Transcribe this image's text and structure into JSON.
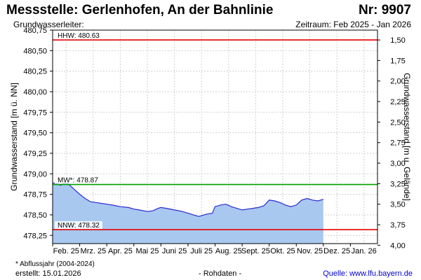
{
  "header": {
    "title": "Messstelle: Gerlenhofen,  An der Bahnlinie",
    "nr": "Nr: 9907",
    "leiter": "Grundwasserleiter:",
    "zeitraum": "Zeitraum: Feb 2025 - Jan 2026"
  },
  "footer": {
    "footnote": "* Abflussjahr (2004-2024)",
    "erstellt": "erstellt:  15.01.2026",
    "rohdaten": "- Rohdaten -",
    "quelle": "Quelle: www.lfu.bayern.de"
  },
  "colors": {
    "fill": "#a8c8f0",
    "line": "#2a2ad0",
    "hhw": "#e60000",
    "mw": "#00a000",
    "nnw": "#e60000",
    "grid": "#cfcfcf"
  },
  "chart_data": {
    "type": "area",
    "ylabel_left": "Grundwasserstand [m ü. NN]",
    "ylabel_right": "Grundwasserstand [m u. Gelände]",
    "ylim": [
      478.15,
      480.75
    ],
    "y_ticks": [
      480.75,
      480.5,
      480.25,
      480.0,
      479.75,
      479.5,
      479.25,
      479.0,
      478.75,
      478.5,
      478.25
    ],
    "y_tick_labels": [
      "480,75",
      "480,50",
      "480,25",
      "480,00",
      "479,75",
      "479,50",
      "479,25",
      "479,00",
      "478,75",
      "478,50",
      "478,25"
    ],
    "right_ticks": [
      1.5,
      1.75,
      2.0,
      2.25,
      2.5,
      2.75,
      3.0,
      3.25,
      3.5,
      3.75,
      4.0
    ],
    "right_tick_labels": [
      "1,50",
      "1,75",
      "2,00",
      "2,25",
      "2,50",
      "2,75",
      "3,00",
      "3,25",
      "3,50",
      "3,75",
      "4,00"
    ],
    "ground_level": 482.13,
    "x_labels": [
      "Feb. 25",
      "Mrz. 25",
      "Apr. 25",
      "Mai 25",
      "Juni 25",
      "Juli 25",
      "Aug. 25",
      "Sept. 25",
      "Okt. 25",
      "Nov. 25",
      "Dez. 25",
      "Jan. 26"
    ],
    "x_range_months": 12,
    "reference_lines": [
      {
        "label": "HHW: 480.63",
        "value": 480.63,
        "color": "#e60000"
      },
      {
        "label": "MW*: 478.87",
        "value": 478.87,
        "color": "#00a000"
      },
      {
        "label": "NNW: 478.32",
        "value": 478.32,
        "color": "#e60000"
      }
    ],
    "series": [
      {
        "x": [
          0,
          0.15,
          0.3,
          0.45,
          0.6,
          0.8,
          1.0,
          1.2,
          1.4,
          1.6,
          1.8,
          2.0,
          2.2,
          2.5,
          2.8,
          3.0,
          3.2,
          3.5,
          3.7,
          3.9,
          4.0,
          4.2,
          4.5,
          4.8,
          5.0,
          5.2,
          5.4,
          5.5,
          5.7,
          5.9,
          6.0,
          6.2,
          6.4,
          6.6,
          6.8,
          7.0,
          7.2,
          7.4,
          7.6,
          7.8,
          8.0,
          8.2,
          8.4,
          8.6,
          8.8,
          9.0,
          9.2,
          9.4,
          9.6,
          9.8,
          10.0
        ],
        "values": [
          478.89,
          478.88,
          478.86,
          478.89,
          478.87,
          478.81,
          478.75,
          478.7,
          478.66,
          478.65,
          478.64,
          478.63,
          478.62,
          478.6,
          478.59,
          478.57,
          478.56,
          478.54,
          478.55,
          478.58,
          478.59,
          478.58,
          478.56,
          478.54,
          478.52,
          478.5,
          478.48,
          478.49,
          478.51,
          478.52,
          478.6,
          478.62,
          478.63,
          478.6,
          478.58,
          478.56,
          478.57,
          478.58,
          478.59,
          478.61,
          478.68,
          478.67,
          478.65,
          478.62,
          478.6,
          478.62,
          478.68,
          478.7,
          478.68,
          478.67,
          478.69
        ]
      }
    ]
  }
}
